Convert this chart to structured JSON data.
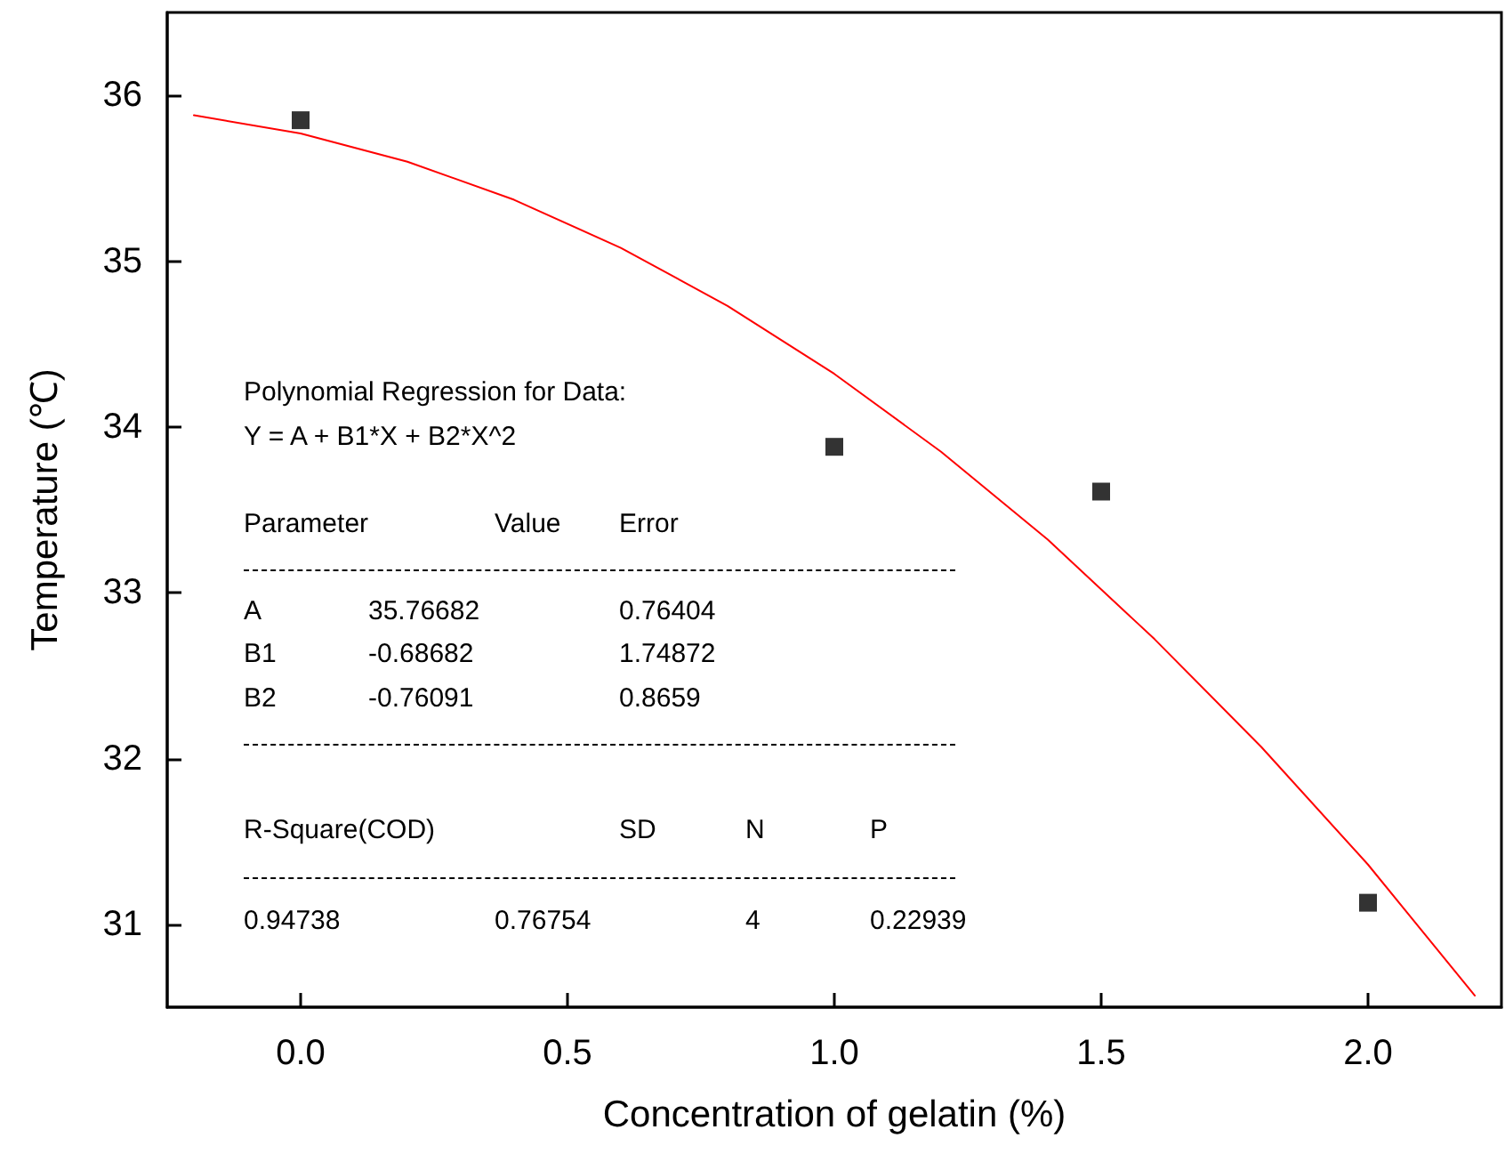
{
  "chart_data": {
    "type": "scatter",
    "xlabel": "Concentration of gelatin (%)",
    "ylabel": "Temperature (℃)",
    "xlim": [
      -0.25,
      2.25
    ],
    "xticks": [
      {
        "value": 0,
        "label": "0.0"
      },
      0.5,
      {
        "value": 1,
        "label": "1.0"
      },
      1.5,
      {
        "value": 2,
        "label": "2.0"
      }
    ],
    "ylim": [
      30.5,
      36.5
    ],
    "yticks": [
      31,
      32,
      33,
      34,
      35,
      36
    ],
    "grid": false,
    "marker": "square",
    "series": [
      {
        "type": "scatter",
        "color": "#000000",
        "x": [
          0,
          1,
          1.5,
          2
        ],
        "values": [
          35.85,
          33.88,
          33.61,
          31.13
        ]
      },
      {
        "type": "line",
        "color": "#ff0000",
        "marker": "none",
        "line_style": "solid",
        "x": [
          -0.2,
          0,
          0.2,
          0.4,
          0.6,
          0.8,
          1.0,
          1.2,
          1.4,
          1.6,
          1.8,
          2.0,
          2.2
        ],
        "values": [
          35.88,
          35.77,
          35.6,
          35.37,
          35.08,
          34.73,
          34.32,
          33.85,
          33.32,
          32.72,
          32.07,
          31.36,
          30.57
        ]
      }
    ],
    "annotations": [
      "Polynomial Regression for Data:",
      "Y = A + B1*X + B2*X^2",
      "Parameter\tValue\tError",
      "A\t35.76682\t0.76404",
      "B1\t-0.68682\t1.74872",
      "B2\t-0.76091\t0.8659",
      "R-Square(COD)\tSD\tN\tP",
      "0.94738\t0.76754\t4\t0.22939"
    ]
  }
}
